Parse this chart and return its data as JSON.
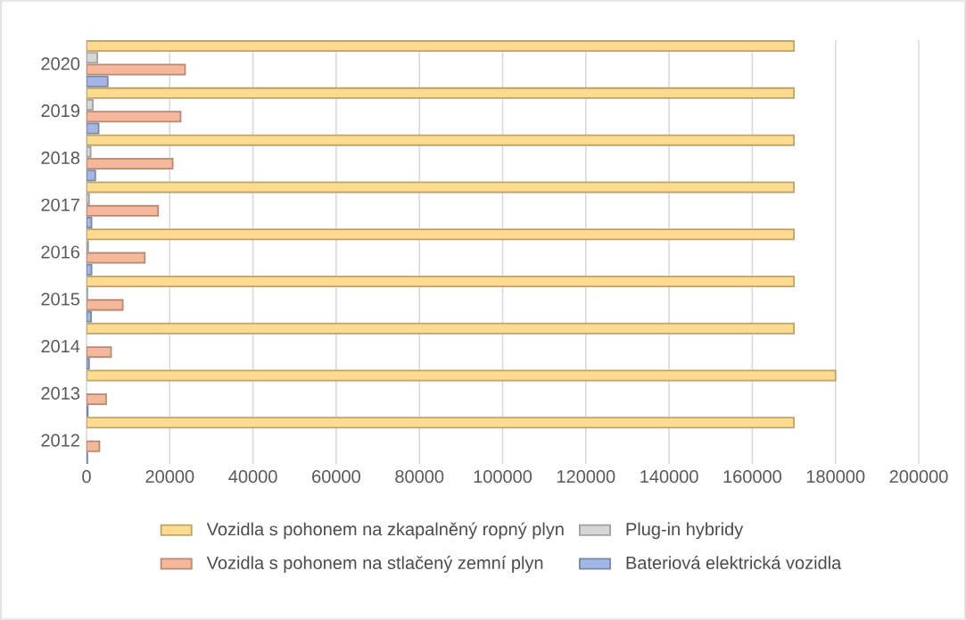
{
  "chart_data": {
    "type": "bar",
    "orientation": "horizontal",
    "categories": [
      "2020",
      "2019",
      "2018",
      "2017",
      "2016",
      "2015",
      "2014",
      "2013",
      "2012"
    ],
    "series": [
      {
        "name": "Vozidla s pohonem na zkapalněný ropný plyn",
        "color": "#fedb8e",
        "values": [
          170000,
          170000,
          170000,
          170000,
          170000,
          170000,
          170000,
          180000,
          170000
        ]
      },
      {
        "name": "Plug-in hybridy",
        "color": "#d6d6d6",
        "values": [
          2600,
          1500,
          1000,
          600,
          400,
          200,
          null,
          null,
          null
        ]
      },
      {
        "name": "Vozidla s pohonem na stlačený zemní plyn",
        "color": "#f6b89a",
        "values": [
          23700,
          22600,
          20700,
          17200,
          14000,
          8700,
          5900,
          4700,
          3100
        ]
      },
      {
        "name": "Bateriová elektrická vozidla",
        "color": "#a3b6e4",
        "values": [
          5100,
          2900,
          2100,
          1200,
          1200,
          1100,
          600,
          300,
          200
        ]
      }
    ],
    "xlim": [
      0,
      200000
    ],
    "xticks": [
      0,
      20000,
      40000,
      60000,
      80000,
      100000,
      120000,
      140000,
      160000,
      180000,
      200000
    ],
    "grid": "x",
    "legend": "bottom"
  }
}
